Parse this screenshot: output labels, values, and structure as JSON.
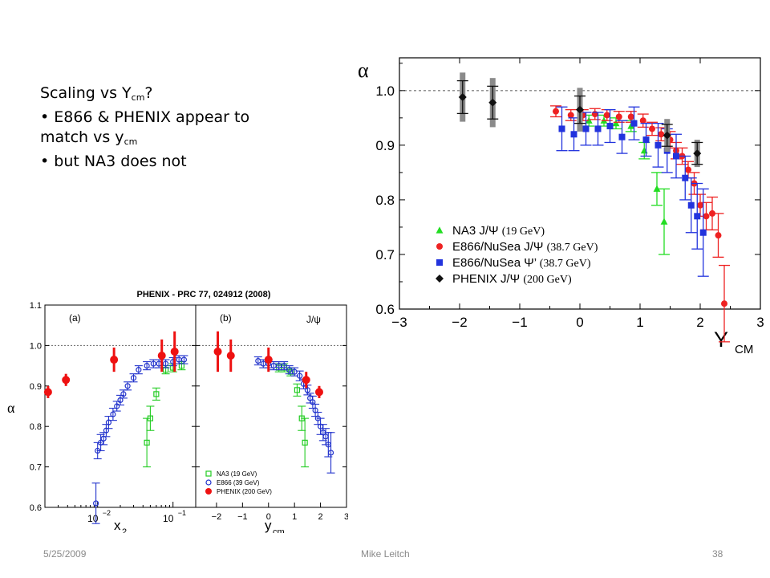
{
  "slide": {
    "bullets": {
      "title_pre": "Scaling vs Y",
      "title_sub": "cm",
      "title_post": "?",
      "b1_line1": "E866 & PHENIX appear to",
      "b1_line2_pre": "match vs y",
      "b1_line2_sub": "cm",
      "b2": "but NA3 does not",
      "bullet_glyph": "•"
    },
    "footer": {
      "date": "5/25/2009",
      "author": "Mike Leitch",
      "page": "38"
    }
  },
  "chart_data": [
    {
      "type": "scatter",
      "xlabel": "Y",
      "xlabel_sub": "CM",
      "ylabel": "α",
      "xlim": [
        -3,
        3
      ],
      "ylim": [
        0.6,
        1.06
      ],
      "xticks": [
        -3,
        -2,
        -1,
        0,
        1,
        2,
        3
      ],
      "yticks": [
        0.6,
        0.7,
        0.8,
        0.9,
        1.0
      ],
      "ytick_labels": [
        "0.6",
        "0.7",
        "0.8",
        "0.9",
        "1.0"
      ],
      "reference_line": 1.0,
      "legend_position": "bottom-left",
      "series": [
        {
          "name": "NA3 J/Ψ",
          "name_note": "(19 GeV)",
          "color": "#22dd22",
          "marker": "triangle",
          "x": [
            0.15,
            0.4,
            0.6,
            0.85,
            1.07,
            1.28,
            1.4
          ],
          "y": [
            0.945,
            0.945,
            0.94,
            0.935,
            0.89,
            0.82,
            0.76
          ],
          "err": [
            0.01,
            0.01,
            0.01,
            0.01,
            0.015,
            0.03,
            0.06
          ]
        },
        {
          "name": "E866/NuSea J/Ψ",
          "name_note": "(38.7 GeV)",
          "color": "#ee2222",
          "marker": "circle",
          "x": [
            -0.4,
            -0.15,
            0.05,
            0.25,
            0.45,
            0.65,
            0.85,
            1.05,
            1.2,
            1.35,
            1.5,
            1.6,
            1.7,
            1.8,
            1.9,
            2.0,
            2.1,
            2.2,
            2.3,
            2.4
          ],
          "y": [
            0.962,
            0.955,
            0.955,
            0.957,
            0.955,
            0.952,
            0.952,
            0.945,
            0.93,
            0.92,
            0.91,
            0.89,
            0.88,
            0.855,
            0.83,
            0.79,
            0.77,
            0.775,
            0.735,
            0.61
          ],
          "err": [
            0.01,
            0.01,
            0.01,
            0.01,
            0.01,
            0.01,
            0.01,
            0.012,
            0.012,
            0.012,
            0.015,
            0.015,
            0.015,
            0.015,
            0.02,
            0.02,
            0.025,
            0.03,
            0.04,
            0.07
          ]
        },
        {
          "name": "E866/NuSea Ψ’",
          "name_note": "(38.7 GeV)",
          "color": "#2233dd",
          "marker": "square",
          "x": [
            -0.3,
            -0.1,
            0.1,
            0.3,
            0.5,
            0.7,
            0.9,
            1.1,
            1.3,
            1.45,
            1.6,
            1.75,
            1.85,
            1.95,
            2.05
          ],
          "y": [
            0.93,
            0.92,
            0.93,
            0.93,
            0.935,
            0.915,
            0.94,
            0.91,
            0.9,
            0.89,
            0.88,
            0.84,
            0.79,
            0.77,
            0.74
          ],
          "err": [
            0.04,
            0.03,
            0.03,
            0.03,
            0.03,
            0.03,
            0.03,
            0.03,
            0.04,
            0.04,
            0.04,
            0.04,
            0.05,
            0.06,
            0.08
          ]
        },
        {
          "name": "PHENIX J/Ψ",
          "name_note": "(200 GeV)",
          "color": "#111111",
          "marker": "diamond",
          "x": [
            -1.95,
            -1.45,
            0.0,
            1.45,
            1.95
          ],
          "y": [
            0.988,
            0.978,
            0.965,
            0.918,
            0.885
          ],
          "err": [
            0.03,
            0.03,
            0.025,
            0.02,
            0.02
          ],
          "syst": [
            0.045,
            0.045,
            0.04,
            0.03,
            0.025
          ]
        }
      ]
    },
    {
      "type": "scatter",
      "title": "PHENIX - PRC 77, 024912 (2008)",
      "ylabel": "α",
      "ylim": [
        0.6,
        1.1
      ],
      "yticks": [
        0.6,
        0.7,
        0.8,
        0.9,
        1.0,
        1.1
      ],
      "ytick_labels": [
        "0.6",
        "0.7",
        "0.8",
        "0.9",
        "1.0",
        "1.1"
      ],
      "reference_line": 1.0,
      "panels": [
        {
          "label": "(a)",
          "xlabel": "x",
          "xlabel_sub": "2",
          "x_scale": "log",
          "xlim": [
            0.002,
            0.2
          ],
          "xtick_labels": [
            {
              "x": 0.01,
              "base": "10",
              "exp": "-2"
            },
            {
              "x": 0.1,
              "base": "10",
              "exp": "-1"
            }
          ],
          "series": [
            {
              "name": "NA3",
              "x": [
                0.045,
                0.05,
                0.06,
                0.08,
                0.1,
                0.13
              ],
              "y": [
                0.76,
                0.82,
                0.88,
                0.94,
                0.945,
                0.95
              ],
              "err": [
                0.06,
                0.03,
                0.015,
                0.01,
                0.01,
                0.01
              ]
            },
            {
              "name": "E866",
              "x": [
                0.0095,
                0.01,
                0.011,
                0.012,
                0.013,
                0.014,
                0.016,
                0.018,
                0.02,
                0.022,
                0.025,
                0.03,
                0.035,
                0.045,
                0.055,
                0.065,
                0.08,
                0.1,
                0.12,
                0.14
              ],
              "y": [
                0.61,
                0.74,
                0.76,
                0.77,
                0.79,
                0.81,
                0.83,
                0.85,
                0.865,
                0.88,
                0.9,
                0.92,
                0.94,
                0.95,
                0.955,
                0.955,
                0.955,
                0.96,
                0.965,
                0.965
              ],
              "err": [
                0.05,
                0.02,
                0.02,
                0.015,
                0.015,
                0.015,
                0.015,
                0.012,
                0.012,
                0.01,
                0.01,
                0.01,
                0.01,
                0.01,
                0.01,
                0.01,
                0.01,
                0.01,
                0.01,
                0.01
              ]
            },
            {
              "name": "PHENIX",
              "x": [
                0.0022,
                0.0038,
                0.0165,
                0.071,
                0.105
              ],
              "y": [
                0.885,
                0.915,
                0.965,
                0.975,
                0.985
              ],
              "err": [
                0.015,
                0.015,
                0.03,
                0.04,
                0.05
              ]
            }
          ]
        },
        {
          "label": "(b)",
          "label_right": "J/ψ",
          "xlabel": "y",
          "xlabel_sub": "cm",
          "x_scale": "linear",
          "xlim": [
            -2.8,
            3
          ],
          "xticks": [
            -2,
            -1,
            0,
            1,
            2,
            3
          ],
          "series": [
            {
              "name": "NA3",
              "x": [
                0.4,
                0.6,
                0.85,
                1.1,
                1.28,
                1.4
              ],
              "y": [
                0.945,
                0.945,
                0.935,
                0.89,
                0.82,
                0.76
              ],
              "err": [
                0.01,
                0.01,
                0.01,
                0.015,
                0.03,
                0.06
              ]
            },
            {
              "name": "E866",
              "x": [
                -0.4,
                -0.2,
                0.0,
                0.2,
                0.4,
                0.6,
                0.8,
                1.0,
                1.2,
                1.35,
                1.5,
                1.6,
                1.7,
                1.8,
                1.9,
                2.0,
                2.1,
                2.2,
                2.3,
                2.4
              ],
              "y": [
                0.962,
                0.955,
                0.955,
                0.95,
                0.95,
                0.95,
                0.94,
                0.935,
                0.925,
                0.905,
                0.89,
                0.87,
                0.86,
                0.84,
                0.82,
                0.8,
                0.785,
                0.775,
                0.755,
                0.735
              ],
              "err": [
                0.01,
                0.01,
                0.01,
                0.01,
                0.01,
                0.01,
                0.01,
                0.01,
                0.012,
                0.012,
                0.012,
                0.012,
                0.015,
                0.015,
                0.015,
                0.02,
                0.02,
                0.02,
                0.03,
                0.05
              ]
            },
            {
              "name": "PHENIX",
              "x": [
                -1.95,
                -1.45,
                0.0,
                1.45,
                1.95
              ],
              "y": [
                0.985,
                0.975,
                0.965,
                0.915,
                0.885
              ],
              "err": [
                0.05,
                0.04,
                0.03,
                0.02,
                0.015
              ]
            }
          ]
        }
      ],
      "legend": [
        {
          "name": "NA3 (19 GeV)",
          "color": "#22cc22",
          "marker": "open-square"
        },
        {
          "name": "E866 (39 GeV)",
          "color": "#2233cc",
          "marker": "open-circle"
        },
        {
          "name": "PHENIX (200 GeV)",
          "color": "#ee1111",
          "marker": "filled-circle"
        }
      ],
      "legend_position": "bottom-right"
    }
  ]
}
